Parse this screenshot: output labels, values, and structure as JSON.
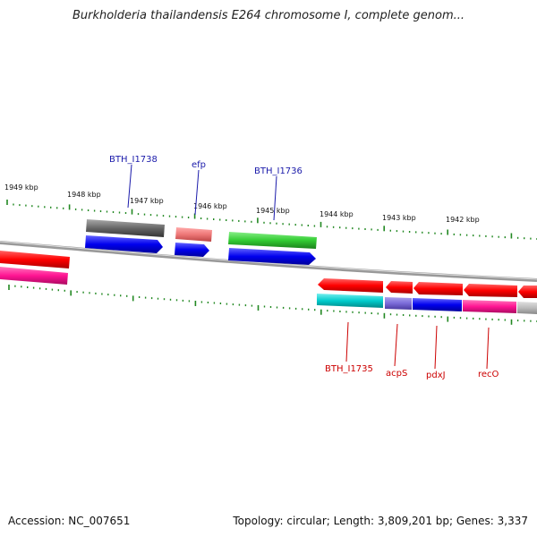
{
  "title": "Burkholderia thailandensis E264 chromosome I, complete genom...",
  "footer": {
    "accession": "Accession: NC_007651",
    "summary": "Topology: circular; Length: 3,809,201 bp; Genes: 3,337"
  },
  "scale": {
    "ticks": [
      "1949 kbp",
      "1948 kbp",
      "1947 kbp",
      "1946 kbp",
      "1945 kbp",
      "1944 kbp",
      "1943 kbp",
      "1942 kbp"
    ]
  },
  "labels": {
    "top": [
      "BTH_I1738",
      "efp",
      "BTH_I1736"
    ],
    "bottom": [
      "BTH_I1735",
      "acpS",
      "pdxJ",
      "recO"
    ]
  },
  "colors": {
    "top_label": "#1a1aaa",
    "bottom_label": "#cc0000",
    "tick": "#228822",
    "backbone": "#888888"
  }
}
